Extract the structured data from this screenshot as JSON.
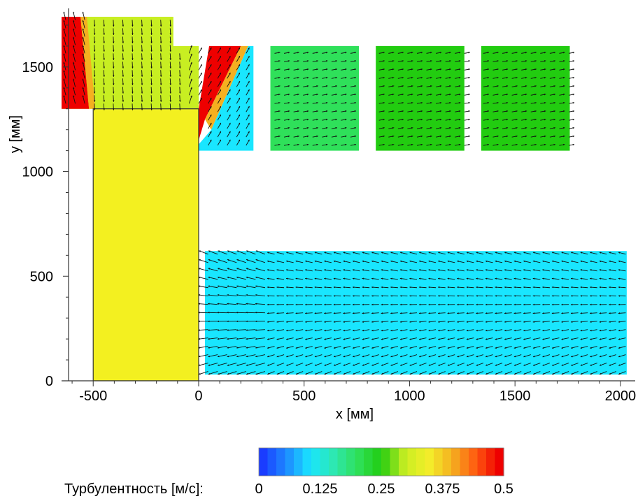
{
  "chart_data": {
    "type": "heatmap",
    "title": "",
    "xlabel": "x [мм]",
    "ylabel": "y [мм]",
    "xlim": [
      -650,
      2070
    ],
    "ylim": [
      0,
      1780
    ],
    "x_ticks": [
      -500,
      0,
      500,
      1000,
      1500,
      2000
    ],
    "y_ticks": [
      0,
      500,
      1000,
      1500
    ],
    "colorbar": {
      "label": "Турбулентность [м/с]:",
      "min": 0,
      "max": 0.5,
      "ticks": [
        "0",
        "0.125",
        "0.25",
        "0.375",
        "0.5"
      ],
      "colors": [
        "#1a3cff",
        "#1e8cff",
        "#19e6ff",
        "#2ee8b0",
        "#2fe05a",
        "#22cc10",
        "#c8ee22",
        "#f3ee2a",
        "#f4b020",
        "#ff5a10",
        "#ee0000"
      ]
    },
    "solid_block": {
      "x": [
        -500,
        0
      ],
      "y": [
        0,
        1300
      ],
      "color": "#f3f020"
    },
    "regions": [
      {
        "name": "upper-left-chamber",
        "value": 0.28,
        "polygon": [
          [
            -650,
            1300
          ],
          [
            -500,
            1300
          ],
          [
            -500,
            1290
          ],
          [
            0,
            1290
          ],
          [
            0,
            1600
          ],
          [
            -120,
            1600
          ],
          [
            -120,
            1740
          ],
          [
            -650,
            1740
          ]
        ]
      },
      {
        "name": "left-jet",
        "value": 0.5,
        "polygon": [
          [
            -650,
            1740
          ],
          [
            -560,
            1740
          ],
          [
            -520,
            1300
          ],
          [
            -650,
            1300
          ]
        ]
      },
      {
        "name": "left-jet-edge",
        "value": 0.42,
        "polygon": [
          [
            -560,
            1740
          ],
          [
            -530,
            1740
          ],
          [
            -490,
            1300
          ],
          [
            -520,
            1300
          ]
        ]
      },
      {
        "name": "right-jet",
        "value": 0.5,
        "polygon": [
          [
            50,
            1600
          ],
          [
            200,
            1600
          ],
          [
            30,
            1250
          ],
          [
            0,
            1150
          ],
          [
            0,
            1300
          ]
        ]
      },
      {
        "name": "right-jet-edge",
        "value": 0.4,
        "polygon": [
          [
            200,
            1600
          ],
          [
            235,
            1600
          ],
          [
            60,
            1200
          ],
          [
            30,
            1250
          ]
        ]
      },
      {
        "name": "upper-window-1",
        "value": 0.12,
        "polygon": [
          [
            0,
            1100
          ],
          [
            260,
            1100
          ],
          [
            260,
            1600
          ],
          [
            235,
            1600
          ],
          [
            60,
            1200
          ],
          [
            0,
            1130
          ]
        ]
      },
      {
        "name": "upper-window-2",
        "value": 0.2,
        "polygon": [
          [
            340,
            1100
          ],
          [
            760,
            1100
          ],
          [
            760,
            1600
          ],
          [
            340,
            1600
          ]
        ]
      },
      {
        "name": "upper-window-3",
        "value": 0.24,
        "polygon": [
          [
            840,
            1100
          ],
          [
            1260,
            1100
          ],
          [
            1260,
            1600
          ],
          [
            840,
            1600
          ]
        ]
      },
      {
        "name": "upper-window-4",
        "value": 0.23,
        "polygon": [
          [
            1340,
            1100
          ],
          [
            1760,
            1100
          ],
          [
            1760,
            1600
          ],
          [
            1340,
            1600
          ]
        ]
      },
      {
        "name": "lower-field",
        "value": 0.1,
        "polygon": [
          [
            30,
            30
          ],
          [
            2030,
            30
          ],
          [
            2030,
            620
          ],
          [
            30,
            620
          ]
        ]
      }
    ]
  }
}
